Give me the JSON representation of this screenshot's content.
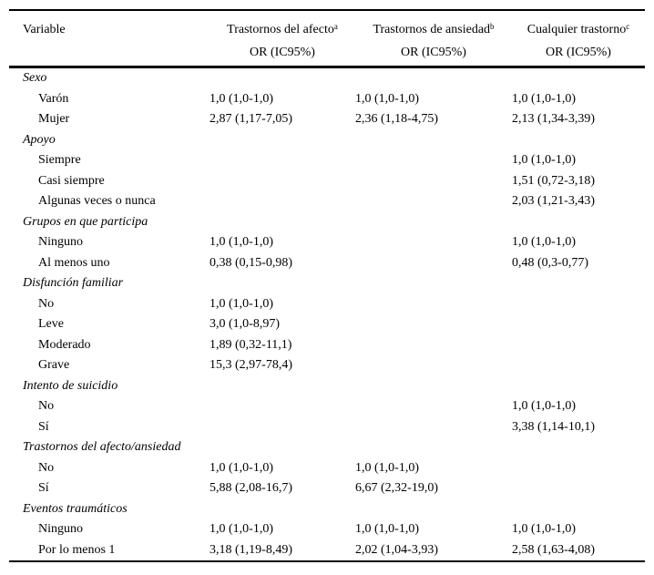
{
  "page": {
    "background": "#ffffff",
    "text_color": "#000000",
    "rule_color": "#000000"
  },
  "table": {
    "columns": [
      {
        "label": "Variable",
        "sup": "",
        "sub": ""
      },
      {
        "label": "Trastornos del afecto",
        "sup": "a",
        "sub": "OR (IC95%)"
      },
      {
        "label": "Trastornos de ansiedad",
        "sup": "b",
        "sub": "OR (IC95%)"
      },
      {
        "label": "Cualquier trastorno",
        "sup": "c",
        "sub": "OR (IC95%)"
      }
    ],
    "sections": [
      {
        "title": "Sexo",
        "rows": [
          {
            "label": "Varón",
            "values": [
              "1,0 (1,0-1,0)",
              "1,0 (1,0-1,0)",
              "1,0 (1,0-1,0)"
            ]
          },
          {
            "label": "Mujer",
            "values": [
              "2,87 (1,17-7,05)",
              "2,36 (1,18-4,75)",
              "2,13 (1,34-3,39)"
            ]
          }
        ]
      },
      {
        "title": "Apoyo",
        "rows": [
          {
            "label": "Siempre",
            "values": [
              "",
              "",
              "1,0 (1,0-1,0)"
            ]
          },
          {
            "label": "Casi siempre",
            "values": [
              "",
              "",
              "1,51 (0,72-3,18)"
            ]
          },
          {
            "label": "Algunas veces o nunca",
            "values": [
              "",
              "",
              "2,03 (1,21-3,43)"
            ]
          }
        ]
      },
      {
        "title": "Grupos en que participa",
        "rows": [
          {
            "label": "Ninguno",
            "values": [
              "1,0 (1,0-1,0)",
              "",
              "1,0 (1,0-1,0)"
            ]
          },
          {
            "label": "Al menos uno",
            "values": [
              "0,38 (0,15-0,98)",
              "",
              "0,48 (0,3-0,77)"
            ]
          }
        ]
      },
      {
        "title": "Disfunción familiar",
        "rows": [
          {
            "label": "No",
            "values": [
              "1,0 (1,0-1,0)",
              "",
              ""
            ]
          },
          {
            "label": "Leve",
            "values": [
              "3,0 (1,0-8,97)",
              "",
              ""
            ]
          },
          {
            "label": "Moderado",
            "values": [
              "1,89 (0,32-11,1)",
              "",
              ""
            ]
          },
          {
            "label": "Grave",
            "values": [
              "15,3 (2,97-78,4)",
              "",
              ""
            ]
          }
        ]
      },
      {
        "title": "Intento de suicidio",
        "rows": [
          {
            "label": "No",
            "values": [
              "",
              "",
              "1,0 (1,0-1,0)"
            ]
          },
          {
            "label": "Sí",
            "values": [
              "",
              "",
              "3,38 (1,14-10,1)"
            ]
          }
        ]
      },
      {
        "title": "Trastornos del afecto/ansiedad",
        "rows": [
          {
            "label": "No",
            "values": [
              "1,0 (1,0-1,0)",
              "1,0 (1,0-1,0)",
              ""
            ]
          },
          {
            "label": "Sí",
            "values": [
              "5,88 (2,08-16,7)",
              "6,67 (2,32-19,0)",
              ""
            ]
          }
        ]
      },
      {
        "title": "Eventos traumáticos",
        "rows": [
          {
            "label": "Ninguno",
            "values": [
              "1,0 (1,0-1,0)",
              "1,0 (1,0-1,0)",
              "1,0 (1,0-1,0)"
            ]
          },
          {
            "label": "Por lo menos 1",
            "values": [
              "3,18 (1,19-8,49)",
              "2,02 (1,04-3,93)",
              "2,58 (1,63-4,08)"
            ]
          }
        ]
      }
    ]
  }
}
